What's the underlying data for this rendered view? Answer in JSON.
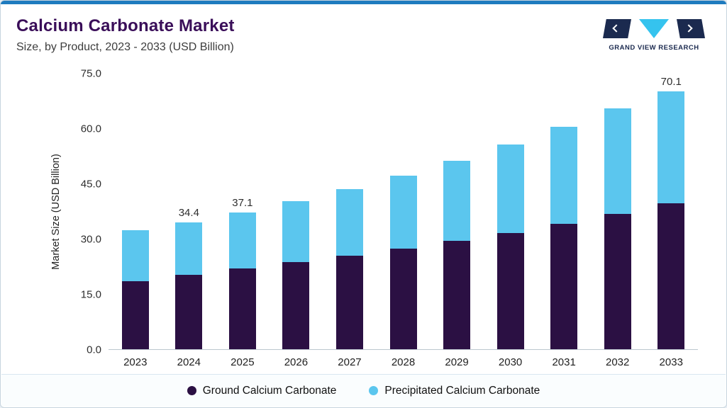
{
  "header": {
    "title": "Calcium Carbonate Market",
    "subtitle": "Size, by Product, 2023 - 2033 (USD Billion)",
    "logo_text": "GRAND VIEW RESEARCH"
  },
  "colors": {
    "accent": "#1E7BBF",
    "title": "#3A0E59",
    "navy": "#1B2A4F",
    "cyan": "#35C3EE",
    "ground": "#2B1043",
    "precipitated": "#5BC6EE"
  },
  "chart_data": {
    "type": "bar",
    "stacked": true,
    "title": "Calcium Carbonate Market",
    "subtitle": "Size, by Product, 2023 - 2033 (USD Billion)",
    "ylabel": "Market Size (USD Billion)",
    "xlabel": "",
    "ylim": [
      0,
      75
    ],
    "grid": false,
    "legend_position": "bottom",
    "yticks": [
      75,
      60,
      45,
      30,
      15,
      0
    ],
    "categories": [
      "2023",
      "2024",
      "2025",
      "2026",
      "2027",
      "2028",
      "2029",
      "2030",
      "2031",
      "2032",
      "2033"
    ],
    "series": [
      {
        "name": "Ground Calcium Carbonate",
        "color": "#2B1043",
        "values": [
          18.5,
          20.2,
          21.9,
          23.6,
          25.4,
          27.3,
          29.4,
          31.6,
          34.1,
          36.7,
          39.6
        ]
      },
      {
        "name": "Precipitated Calcium Carbonate",
        "color": "#5BC6EE",
        "values": [
          13.8,
          14.2,
          15.2,
          16.6,
          18.1,
          19.9,
          21.7,
          24.0,
          26.2,
          28.7,
          30.5
        ]
      }
    ],
    "totals": [
      32.3,
      34.4,
      37.1,
      40.2,
      43.5,
      47.2,
      51.1,
      55.6,
      60.3,
      65.4,
      70.1
    ],
    "value_labels": [
      "",
      "34.4",
      "37.1",
      "",
      "",
      "",
      "",
      "",
      "",
      "",
      "70.1"
    ]
  }
}
